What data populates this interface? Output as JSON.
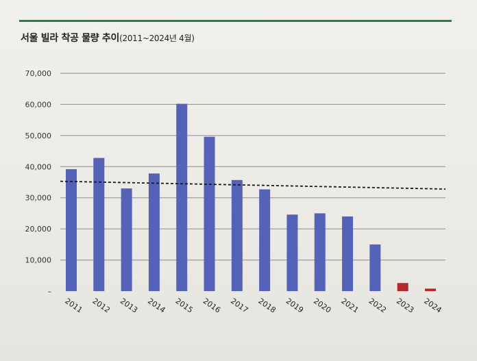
{
  "chart_data": {
    "type": "bar",
    "title": "서울 빌라 착공 물량 추이",
    "subtitle": "(2011~2024년 4월)",
    "xlabel": "",
    "ylabel": "",
    "ylim": [
      0,
      70000
    ],
    "yticks": [
      "–",
      "10,000",
      "20,000",
      "30,000",
      "40,000",
      "50,000",
      "60,000",
      "70,000"
    ],
    "categories": [
      "2011",
      "2012",
      "2013",
      "2014",
      "2015",
      "2016",
      "2017",
      "2018",
      "2019",
      "2020",
      "2021",
      "2022",
      "2023",
      "2024"
    ],
    "values": [
      39200,
      42800,
      33000,
      37800,
      60200,
      49600,
      35700,
      32700,
      24600,
      25000,
      24000,
      15000,
      2600,
      800
    ],
    "bar_colors": [
      "#5462b8",
      "#5462b8",
      "#5462b8",
      "#5462b8",
      "#5462b8",
      "#5462b8",
      "#5462b8",
      "#5462b8",
      "#5462b8",
      "#5462b8",
      "#5462b8",
      "#5462b8",
      "#b6262b",
      "#b6262b"
    ],
    "average_line": {
      "style": "dashed",
      "from": 35300,
      "to": 32800
    },
    "grid": true,
    "legend": "none"
  }
}
